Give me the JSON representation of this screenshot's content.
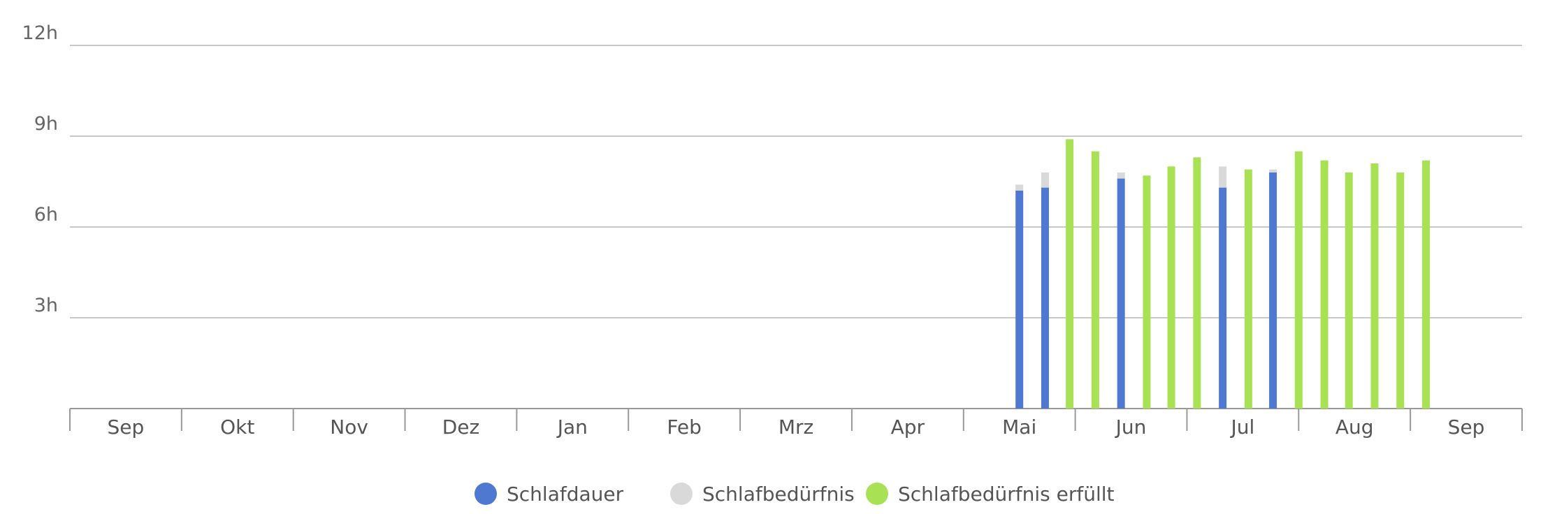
{
  "chart_data": {
    "type": "bar",
    "title": "",
    "xlabel": "",
    "ylabel": "",
    "ylim": [
      0,
      12
    ],
    "yticks": [
      {
        "value": 3,
        "label": "3h"
      },
      {
        "value": 6,
        "label": "6h"
      },
      {
        "value": 9,
        "label": "9h"
      },
      {
        "value": 12,
        "label": "12h"
      }
    ],
    "months": [
      "Sep",
      "Okt",
      "Nov",
      "Dez",
      "Jan",
      "Feb",
      "Mrz",
      "Apr",
      "Mai",
      "Jun",
      "Jul",
      "Aug",
      "Sep"
    ],
    "grid": true,
    "legend_position": "bottom-center",
    "series": [
      {
        "name": "Schlafdauer",
        "color": "#4f78d0"
      },
      {
        "name": "Schlafbedürfnis",
        "color": "#d9d9d9"
      },
      {
        "name": "Schlafbedürfnis erfüllt",
        "color": "#a8e254"
      }
    ],
    "bars": [
      {
        "month_pos": 8.5,
        "schlafdauer": 7.2,
        "schlafbeduerfnis": 7.4,
        "erfuellt": false
      },
      {
        "month_pos": 8.73,
        "schlafdauer": 7.3,
        "schlafbeduerfnis": 7.8,
        "erfuellt": false
      },
      {
        "month_pos": 8.95,
        "schlafdauer": 8.9,
        "schlafbeduerfnis": 8.9,
        "erfuellt": true
      },
      {
        "month_pos": 9.18,
        "schlafdauer": 8.5,
        "schlafbeduerfnis": 8.5,
        "erfuellt": true
      },
      {
        "month_pos": 9.41,
        "schlafdauer": 7.6,
        "schlafbeduerfnis": 7.8,
        "erfuellt": false
      },
      {
        "month_pos": 9.64,
        "schlafdauer": 7.7,
        "schlafbeduerfnis": 7.7,
        "erfuellt": true
      },
      {
        "month_pos": 9.86,
        "schlafdauer": 8.0,
        "schlafbeduerfnis": 8.0,
        "erfuellt": true
      },
      {
        "month_pos": 10.09,
        "schlafdauer": 8.3,
        "schlafbeduerfnis": 8.3,
        "erfuellt": true
      },
      {
        "month_pos": 10.32,
        "schlafdauer": 7.3,
        "schlafbeduerfnis": 8.0,
        "erfuellt": false
      },
      {
        "month_pos": 10.55,
        "schlafdauer": 7.9,
        "schlafbeduerfnis": 7.9,
        "erfuellt": true
      },
      {
        "month_pos": 10.77,
        "schlafdauer": 7.8,
        "schlafbeduerfnis": 7.9,
        "erfuellt": false
      },
      {
        "month_pos": 11.0,
        "schlafdauer": 8.5,
        "schlafbeduerfnis": 8.5,
        "erfuellt": true
      },
      {
        "month_pos": 11.23,
        "schlafdauer": 8.2,
        "schlafbeduerfnis": 8.2,
        "erfuellt": true
      },
      {
        "month_pos": 11.45,
        "schlafdauer": 7.8,
        "schlafbeduerfnis": 7.8,
        "erfuellt": true
      },
      {
        "month_pos": 11.68,
        "schlafdauer": 8.1,
        "schlafbeduerfnis": 8.1,
        "erfuellt": true
      },
      {
        "month_pos": 11.91,
        "schlafdauer": 7.8,
        "schlafbeduerfnis": 7.8,
        "erfuellt": true
      },
      {
        "month_pos": 12.14,
        "schlafdauer": 8.2,
        "schlafbeduerfnis": 8.2,
        "erfuellt": true
      }
    ]
  }
}
